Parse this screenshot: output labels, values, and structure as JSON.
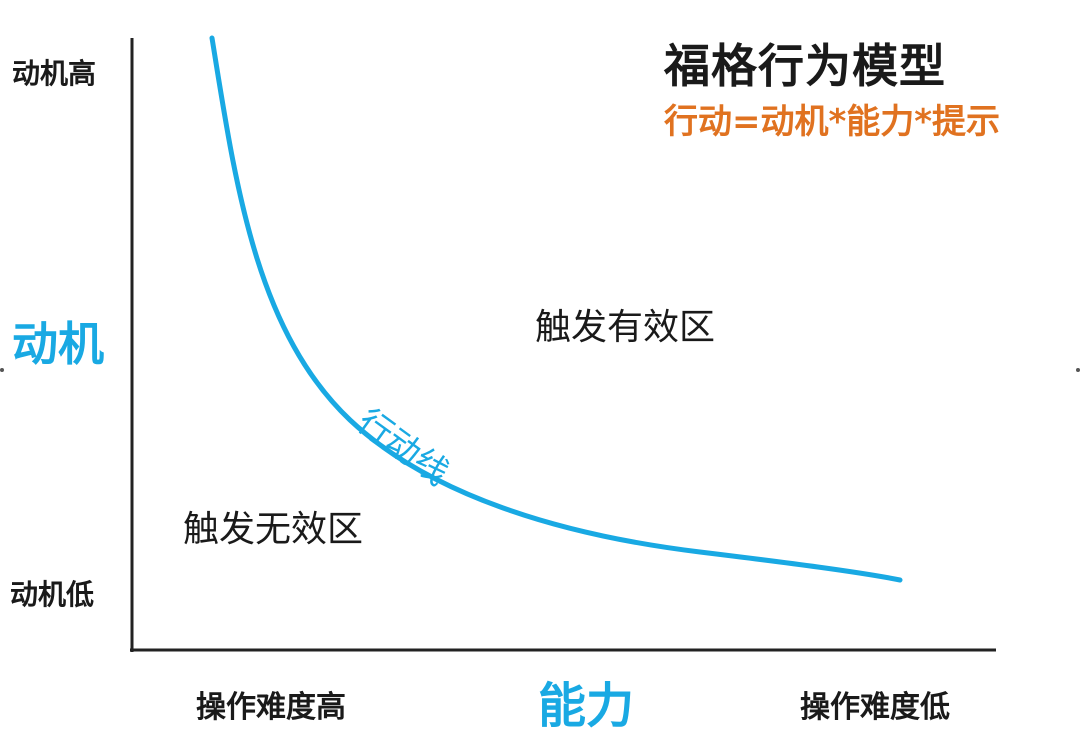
{
  "title": "福格行为模型",
  "formula": "行动=动机*能力*提示",
  "axes": {
    "y": {
      "label": "动机",
      "high": "动机高",
      "low": "动机低"
    },
    "x": {
      "label": "能力",
      "left": "操作难度高",
      "right": "操作难度低"
    }
  },
  "zones": {
    "valid": "触发有效区",
    "invalid": "触发无效区"
  },
  "curve": {
    "label": "行动线",
    "color": "#19a9e3"
  },
  "colors": {
    "accent": "#19a9e3",
    "formula": "#e07220",
    "text": "#1a1a1a"
  }
}
